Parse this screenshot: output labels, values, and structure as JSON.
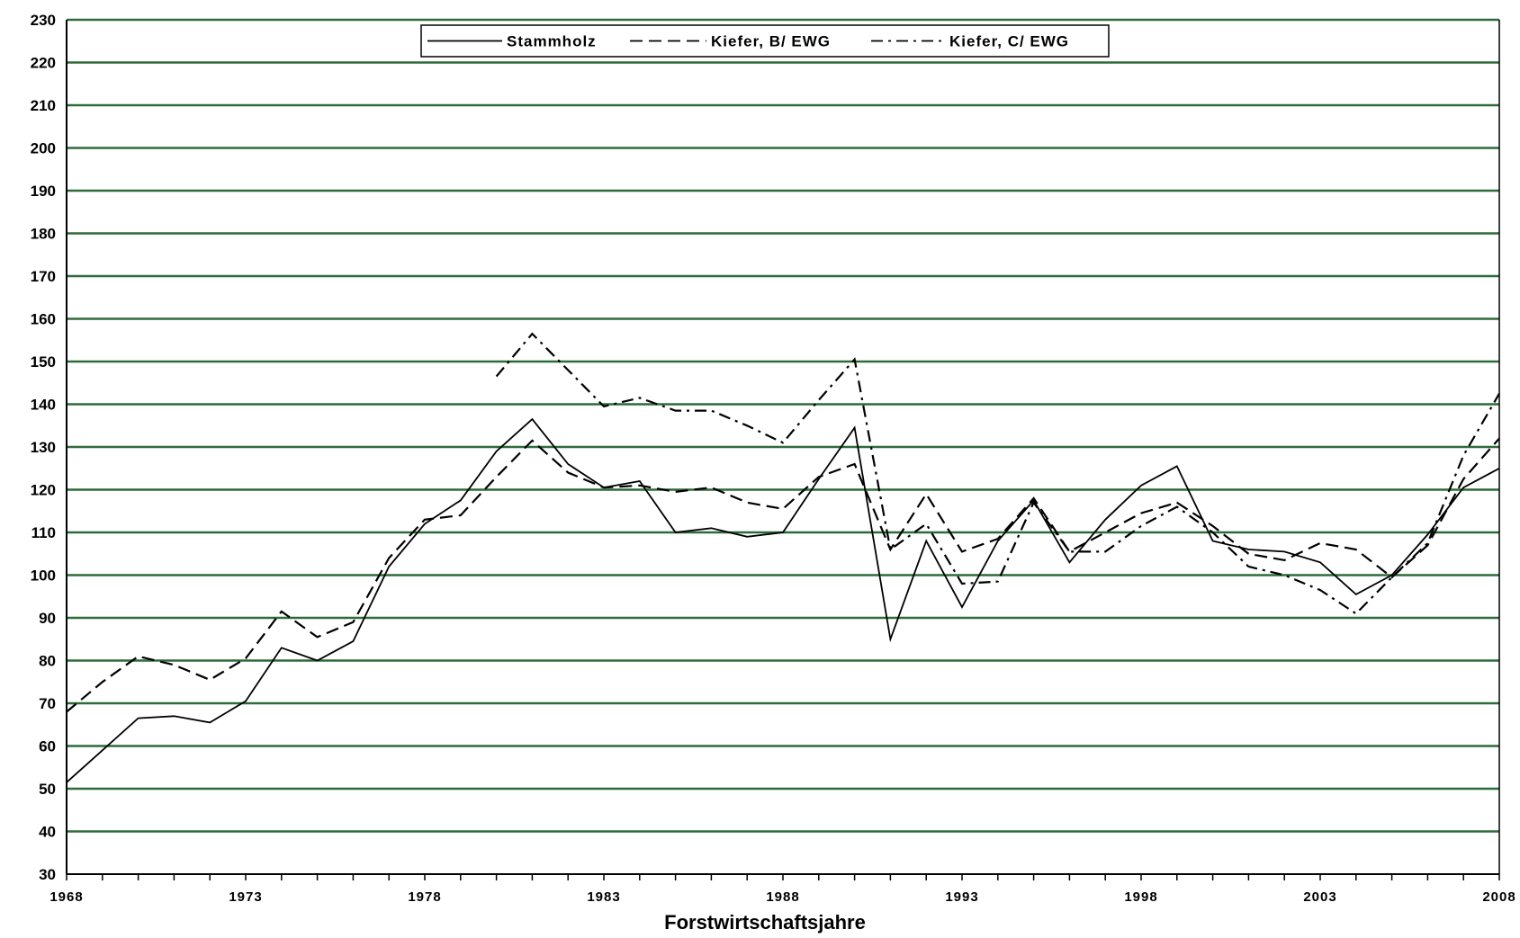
{
  "chart_data": {
    "type": "line",
    "title": "",
    "xlabel": "Forstwirtschaftsjahre",
    "ylabel": "",
    "xlim": [
      1968,
      2008
    ],
    "ylim": [
      30,
      230
    ],
    "y_ticks": [
      30,
      40,
      50,
      60,
      70,
      80,
      90,
      100,
      110,
      120,
      130,
      140,
      150,
      160,
      170,
      180,
      190,
      200,
      210,
      220,
      230
    ],
    "x_ticks": [
      1968,
      1973,
      1978,
      1983,
      1988,
      1993,
      1998,
      2003,
      2008
    ],
    "grid": "horizontal",
    "grid_color": "#2e6b3a",
    "legend_position": "top",
    "series": [
      {
        "name": "Stammholz",
        "style": "solid",
        "color": "#000000",
        "x": [
          1968,
          1969,
          1970,
          1971,
          1972,
          1973,
          1974,
          1975,
          1976,
          1977,
          1978,
          1979,
          1980,
          1981,
          1982,
          1983,
          1984,
          1985,
          1986,
          1987,
          1988,
          1989,
          1990,
          1991,
          1992,
          1993,
          1994,
          1995,
          1996,
          1997,
          1998,
          1999,
          2000,
          2001,
          2002,
          2003,
          2004,
          2005,
          2006,
          2007,
          2008
        ],
        "values": [
          51.5,
          59,
          66.5,
          67,
          65.5,
          70.5,
          83,
          80,
          84.5,
          102,
          112,
          117.5,
          129,
          136.5,
          126,
          120.5,
          122,
          110,
          111,
          109,
          110,
          122.5,
          134.5,
          85,
          108,
          92.5,
          108,
          117.5,
          103,
          113,
          121,
          125.5,
          108,
          106,
          105.5,
          103,
          95.5,
          100,
          109.5,
          120.5,
          125
        ]
      },
      {
        "name": "Kiefer, B/ EWG",
        "style": "dashed",
        "color": "#000000",
        "x": [
          1968,
          1969,
          1970,
          1971,
          1972,
          1973,
          1974,
          1975,
          1976,
          1977,
          1978,
          1979,
          1980,
          1981,
          1982,
          1983,
          1984,
          1985,
          1986,
          1987,
          1988,
          1989,
          1990,
          1991,
          1992,
          1993,
          1994,
          1995,
          1996,
          1997,
          1998,
          1999,
          2000,
          2001,
          2002,
          2003,
          2004,
          2005,
          2006,
          2007,
          2008
        ],
        "values": [
          68,
          75,
          81,
          79,
          75.5,
          80.5,
          91.5,
          85.5,
          89,
          104,
          113,
          114,
          123,
          131.5,
          124,
          120.5,
          121,
          119.5,
          120.5,
          117,
          115.5,
          123,
          126,
          106,
          119,
          105.5,
          108.5,
          118,
          105.5,
          110,
          114.5,
          117,
          111.5,
          105,
          103.5,
          107.5,
          106,
          99.5,
          107,
          122.5,
          132
        ]
      },
      {
        "name": "Kiefer, C/ EWG",
        "style": "dashdot",
        "color": "#000000",
        "x": [
          1980,
          1981,
          1982,
          1983,
          1984,
          1985,
          1986,
          1987,
          1988,
          1989,
          1990,
          1991,
          1992,
          1993,
          1994,
          1995,
          1996,
          1997,
          1998,
          1999,
          2000,
          2001,
          2002,
          2003,
          2004,
          2005,
          2006,
          2007,
          2008
        ],
        "values": [
          146.5,
          156.5,
          148,
          139.5,
          141.5,
          138.5,
          138.5,
          135,
          131,
          141,
          150.5,
          106,
          112,
          98,
          98.5,
          117,
          105.5,
          105.5,
          111.5,
          116,
          110,
          102,
          100,
          96.5,
          91,
          99.5,
          107.5,
          128,
          142.5
        ]
      }
    ]
  }
}
